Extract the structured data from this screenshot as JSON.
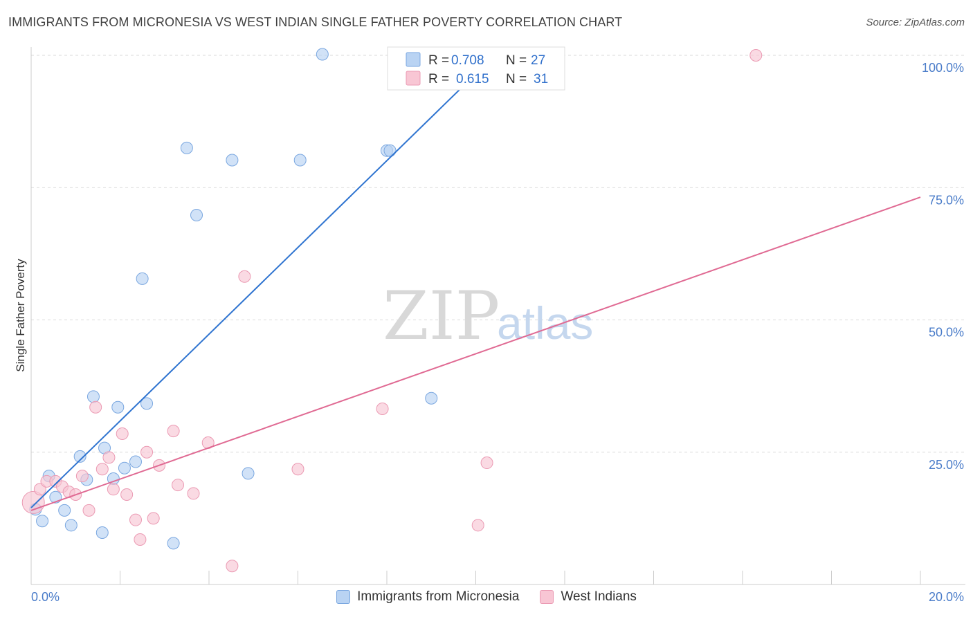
{
  "header": {
    "title": "IMMIGRANTS FROM MICRONESIA VS WEST INDIAN SINGLE FATHER POVERTY CORRELATION CHART",
    "source": "Source: ZipAtlas.com"
  },
  "watermark": {
    "zip": "ZIP",
    "atlas": "atlas"
  },
  "colors": {
    "blue_fill": "#b9d3f3",
    "blue_stroke": "#7aa7e0",
    "blue_line": "#2f74d0",
    "pink_fill": "#f8c6d4",
    "pink_stroke": "#eb9ab3",
    "pink_line": "#e06a93",
    "value_text": "#2f6fcb",
    "grid": "#d9d9d9"
  },
  "legend": {
    "blue": {
      "r_label": "R =",
      "r_value": "0.708",
      "n_label": "N =",
      "n_value": "27"
    },
    "pink": {
      "r_label": "R =",
      "r_value": "0.615",
      "n_label": "N =",
      "n_value": "31"
    }
  },
  "chart_data": {
    "type": "scatter",
    "title": "IMMIGRANTS FROM MICRONESIA VS WEST INDIAN SINGLE FATHER POVERTY CORRELATION CHART",
    "xlabel": "",
    "ylabel": "Single Father Poverty",
    "xlim": [
      0,
      20
    ],
    "ylim": [
      0,
      102
    ],
    "x_tick_labels": [
      "0.0%",
      "20.0%"
    ],
    "y_ticks": [
      25,
      50,
      75,
      100
    ],
    "y_tick_labels": [
      "25.0%",
      "50.0%",
      "75.0%",
      "100.0%"
    ],
    "grid": true,
    "series": [
      {
        "name": "Immigrants from Micronesia",
        "color": "blue",
        "r": 0.708,
        "n": 27,
        "trend": {
          "x0": 0.0,
          "y0": 14.5,
          "x1": 10.0,
          "y1": 96.5
        },
        "points": [
          [
            0.1,
            14.2
          ],
          [
            0.25,
            12.0
          ],
          [
            0.4,
            20.5
          ],
          [
            0.55,
            16.5
          ],
          [
            0.75,
            14.0
          ],
          [
            0.9,
            11.2
          ],
          [
            1.1,
            24.2
          ],
          [
            1.25,
            19.8
          ],
          [
            1.4,
            35.5
          ],
          [
            1.6,
            9.8
          ],
          [
            1.65,
            25.8
          ],
          [
            1.85,
            20.0
          ],
          [
            1.95,
            33.5
          ],
          [
            2.1,
            22.0
          ],
          [
            2.35,
            23.2
          ],
          [
            2.6,
            34.2
          ],
          [
            2.5,
            57.8
          ],
          [
            3.2,
            7.8
          ],
          [
            3.5,
            82.5
          ],
          [
            3.72,
            69.8
          ],
          [
            4.52,
            80.2
          ],
          [
            4.88,
            21.0
          ],
          [
            6.05,
            80.2
          ],
          [
            6.55,
            100.2
          ],
          [
            8.0,
            82.0
          ],
          [
            8.07,
            82.0
          ],
          [
            9.0,
            35.2
          ]
        ]
      },
      {
        "name": "West Indians",
        "color": "pink",
        "r": 0.615,
        "n": 31,
        "trend": {
          "x0": 0.0,
          "y0": 14.0,
          "x1": 20.0,
          "y1": 73.2
        },
        "points": [
          [
            0.05,
            15.5
          ],
          [
            0.2,
            18.0
          ],
          [
            0.35,
            19.5
          ],
          [
            0.55,
            19.5
          ],
          [
            0.7,
            18.5
          ],
          [
            0.85,
            17.5
          ],
          [
            1.0,
            17.0
          ],
          [
            1.15,
            20.5
          ],
          [
            1.3,
            14.0
          ],
          [
            1.45,
            33.5
          ],
          [
            1.6,
            21.8
          ],
          [
            1.75,
            24.0
          ],
          [
            1.85,
            18.0
          ],
          [
            2.05,
            28.5
          ],
          [
            2.15,
            17.0
          ],
          [
            2.35,
            12.2
          ],
          [
            2.45,
            8.5
          ],
          [
            2.6,
            25.0
          ],
          [
            2.75,
            12.5
          ],
          [
            2.88,
            22.5
          ],
          [
            3.2,
            29.0
          ],
          [
            3.3,
            18.8
          ],
          [
            3.65,
            17.2
          ],
          [
            3.98,
            26.8
          ],
          [
            4.52,
            3.5
          ],
          [
            4.8,
            58.2
          ],
          [
            6.0,
            21.8
          ],
          [
            7.9,
            33.2
          ],
          [
            10.05,
            11.2
          ],
          [
            10.25,
            23.0
          ],
          [
            16.3,
            100.0
          ]
        ]
      }
    ]
  }
}
